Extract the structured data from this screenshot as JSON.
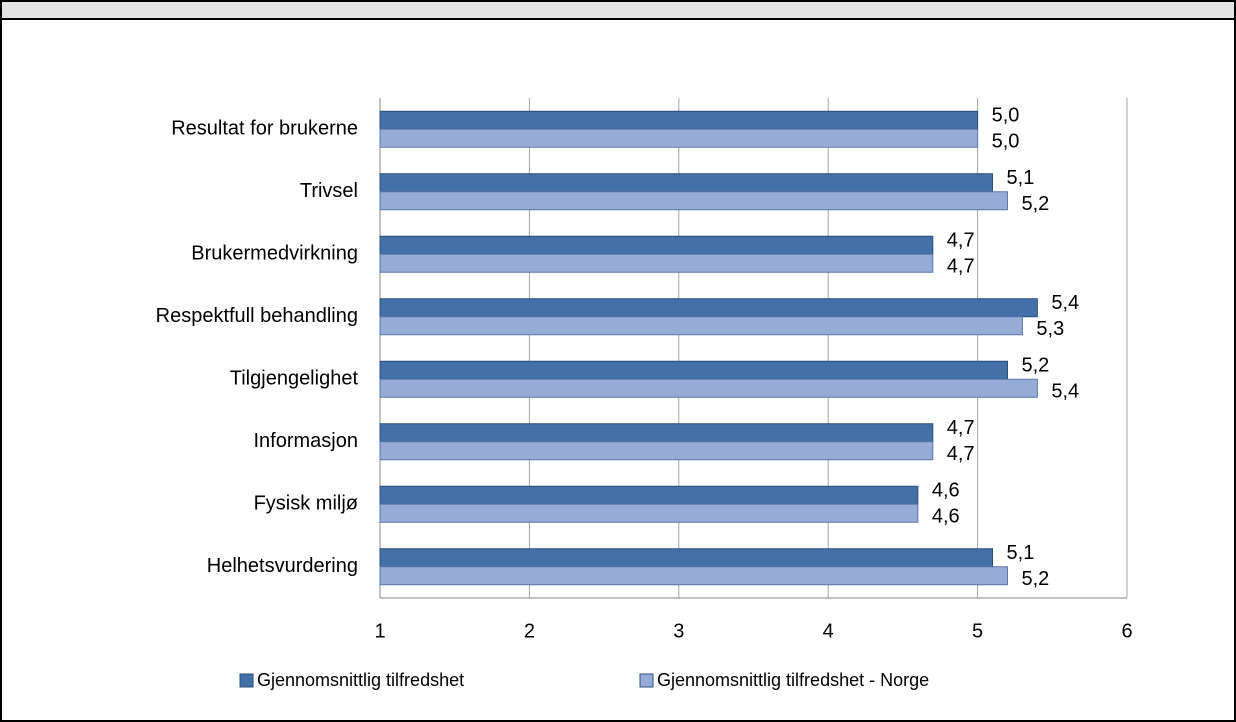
{
  "chart_data": {
    "type": "hbar",
    "categories": [
      "Resultat for brukerne",
      "Trivsel",
      "Brukermedvirkning",
      "Respektfull behandling",
      "Tilgjengelighet",
      "Informasjon",
      "Fysisk miljø",
      "Helhetsvurdering"
    ],
    "series": [
      {
        "name": "Gjennomsnittlig tilfredshet",
        "color": "#4470a8",
        "values": [
          5.0,
          5.1,
          4.7,
          5.4,
          5.2,
          4.7,
          4.6,
          5.1
        ],
        "value_labels": [
          "5,0",
          "5,1",
          "4,7",
          "5,4",
          "5,2",
          "4,7",
          "4,6",
          "5,1"
        ]
      },
      {
        "name": "Gjennomsnittlig tilfredshet - Norge",
        "color": "#96acd6",
        "values": [
          5.0,
          5.2,
          4.7,
          5.3,
          5.4,
          4.7,
          4.6,
          5.2
        ],
        "value_labels": [
          "5,0",
          "5,2",
          "4,7",
          "5,3",
          "5,4",
          "4,7",
          "4,6",
          "5,2"
        ]
      }
    ],
    "xlim": [
      1,
      6
    ],
    "xticks": [
      1,
      2,
      3,
      4,
      5,
      6
    ],
    "grid": true,
    "legend": "bottom"
  }
}
